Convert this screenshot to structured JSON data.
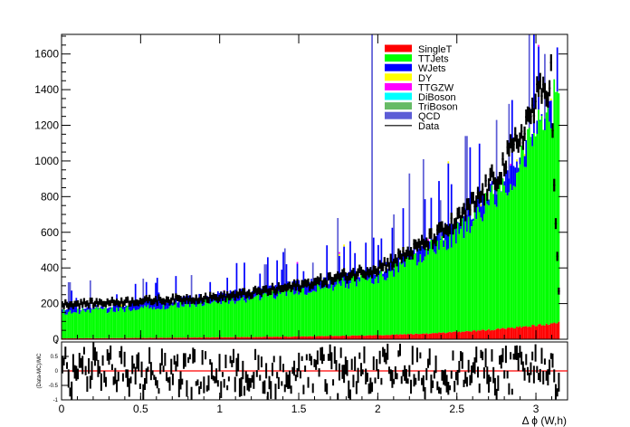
{
  "chart_data": [
    {
      "type": "bar",
      "title": "",
      "xlabel": "",
      "ylabel": "",
      "xlim": [
        0,
        3.2
      ],
      "ylim": [
        0,
        1710
      ],
      "xticks": [
        0,
        0.5,
        1,
        1.5,
        2,
        2.5,
        3
      ],
      "xtick_labels": [
        "0",
        "0.5",
        "1",
        "1.5",
        "2",
        "2.5",
        "3"
      ],
      "yticks": [
        0,
        200,
        400,
        600,
        800,
        1000,
        1200,
        1400,
        1600
      ],
      "ytick_labels": [
        "0",
        "200",
        "400",
        "600",
        "800",
        "1000",
        "1200",
        "1400",
        "1600"
      ],
      "stacked": true,
      "x_range": [
        0,
        3.15
      ],
      "n_bins": 320,
      "legend_position": "top-right",
      "legend": [
        {
          "label": "SingleT",
          "color": "#ff0000",
          "kind": "fill"
        },
        {
          "label": "TTJets",
          "color": "#00ff00",
          "kind": "fill"
        },
        {
          "label": "WJets",
          "color": "#0000ff",
          "kind": "fill"
        },
        {
          "label": "DY",
          "color": "#ffff00",
          "kind": "fill"
        },
        {
          "label": "TTGZW",
          "color": "#ff00ff",
          "kind": "fill"
        },
        {
          "label": "DiBoson",
          "color": "#00ffff",
          "kind": "fill"
        },
        {
          "label": "TriBoson",
          "color": "#66bb66",
          "kind": "fill"
        },
        {
          "label": "QCD",
          "color": "#5c5cd6",
          "kind": "fill"
        },
        {
          "label": "Data",
          "color": "#000000",
          "kind": "line"
        }
      ],
      "series": [
        {
          "name": "SingleT",
          "color": "#ff0000",
          "shape": "exponential",
          "y_at_x": [
            [
              0,
              5
            ],
            [
              2.0,
              22
            ],
            [
              3.15,
              92
            ]
          ]
        },
        {
          "name": "TTJets",
          "color": "#00ff00",
          "shape": "exponential",
          "y_at_x": [
            [
              0,
              145
            ],
            [
              1.0,
              200
            ],
            [
              2.0,
              330
            ],
            [
              2.5,
              560
            ],
            [
              3.15,
              1280
            ]
          ]
        },
        {
          "name": "WJets",
          "color": "#0000ff",
          "shape": "exponential_noisy",
          "y_at_x": [
            [
              0,
              165
            ],
            [
              2.0,
              380
            ],
            [
              3.15,
              1330
            ]
          ]
        },
        {
          "name": "QCD",
          "color": "#5c5cd6",
          "shape": "sparse_spikes",
          "spikes": [
            [
              0.05,
              320
            ],
            [
              0.18,
              330
            ],
            [
              0.52,
              340
            ],
            [
              0.82,
              360
            ],
            [
              1.29,
              420
            ],
            [
              1.41,
              510
            ],
            [
              1.59,
              430
            ],
            [
              1.75,
              680
            ],
            [
              1.96,
              1710
            ],
            [
              2.1,
              700
            ],
            [
              2.2,
              930
            ],
            [
              2.29,
              1010
            ],
            [
              2.4,
              780
            ],
            [
              2.56,
              1140
            ],
            [
              2.75,
              1230
            ],
            [
              2.83,
              1320
            ],
            [
              2.96,
              1720
            ],
            [
              3.06,
              1600
            ]
          ]
        }
      ],
      "data": {
        "name": "Data",
        "color": "#000000",
        "y_at_x": [
          [
            0,
            195
          ],
          [
            0.5,
            215
          ],
          [
            1.0,
            235
          ],
          [
            1.5,
            300
          ],
          [
            2.0,
            400
          ],
          [
            2.5,
            660
          ],
          [
            2.8,
            980
          ],
          [
            3.0,
            1330
          ],
          [
            3.1,
            1480
          ],
          [
            3.15,
            270
          ]
        ]
      }
    },
    {
      "type": "scatter",
      "ylabel": "(Data-MC)/MC",
      "xlabel": "Δ ϕ (W,h)",
      "xlim": [
        0,
        3.2
      ],
      "ylim": [
        -1,
        1
      ],
      "xticks": [
        0,
        0.5,
        1,
        1.5,
        2,
        2.5,
        3
      ],
      "xtick_labels": [
        "0",
        "0.5",
        "1",
        "1.5",
        "2",
        "2.5",
        "3"
      ],
      "yticks": [
        -1,
        -0.5,
        0,
        0.5,
        1
      ],
      "ytick_labels": [
        "-1",
        "-0.5",
        "0",
        "0.5",
        "1"
      ],
      "reference_line": {
        "y": 0,
        "color": "#ff0000"
      },
      "points": "one ratio point with vertical error bar per histogram bin, values scattered between -1 and 1 around 0"
    }
  ]
}
